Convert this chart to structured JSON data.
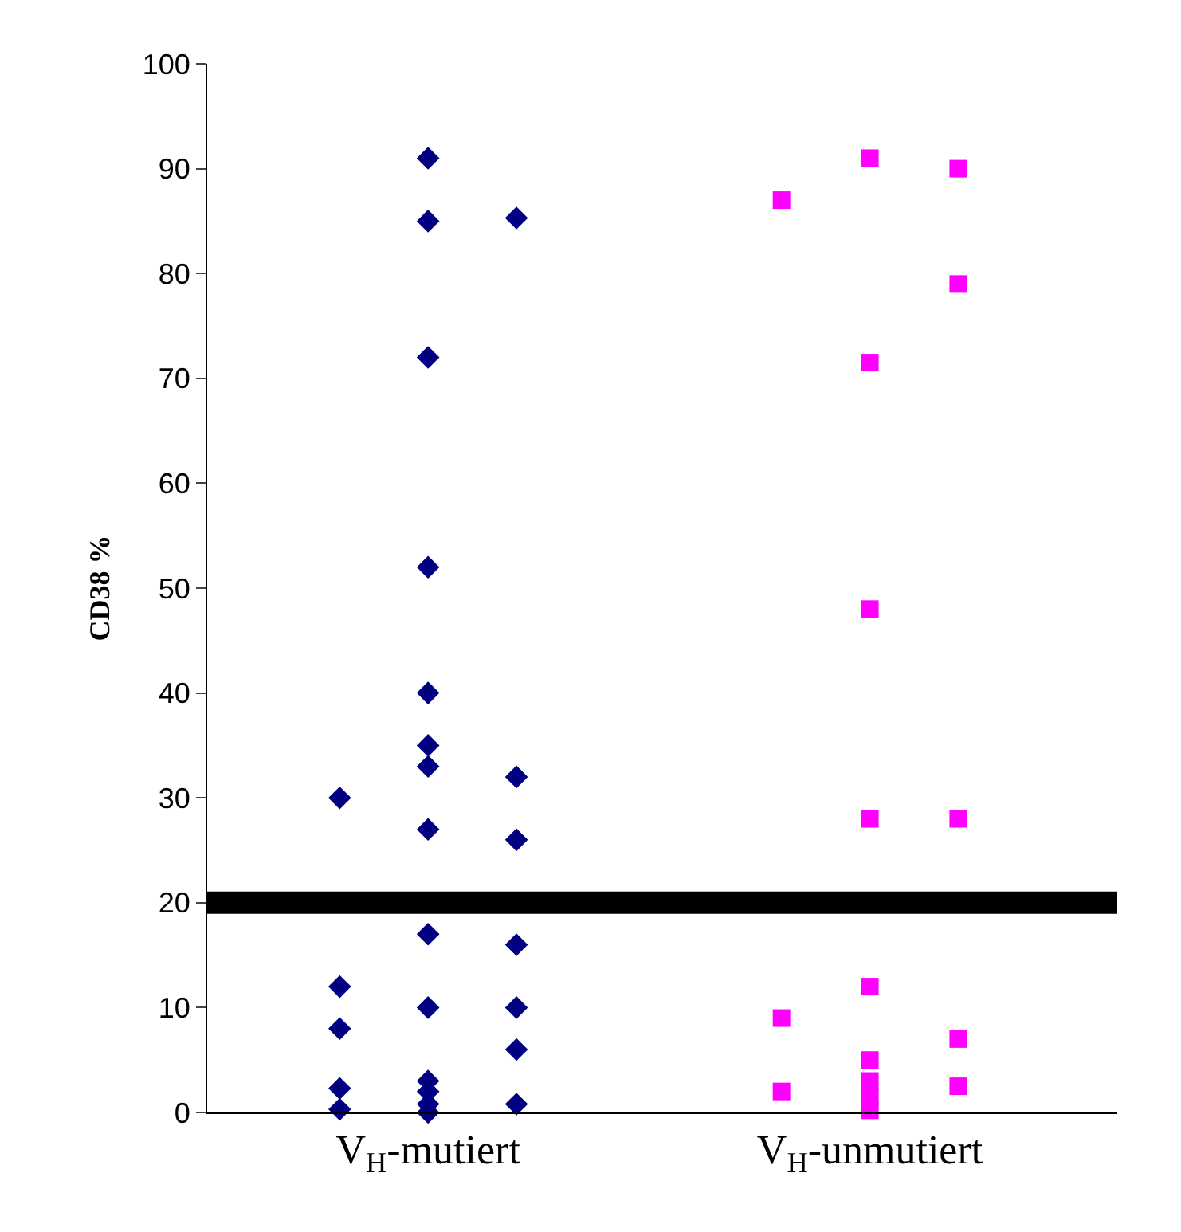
{
  "chart_data": {
    "type": "scatter",
    "ylabel": "CD38 %",
    "categories": [
      null,
      null,
      "V$_{H}$-mutiert",
      null,
      null,
      null,
      null,
      "V$_{H}$-unmutiert",
      null,
      null
    ],
    "ylim": [
      0,
      100
    ],
    "yticks": [
      0,
      10,
      20,
      30,
      40,
      50,
      60,
      70,
      80,
      90,
      100
    ],
    "grid": false,
    "legend": false,
    "series": [
      {
        "color": "#000080",
        "marker": "diamond",
        "values": [
          null,
          30,
          91,
          85.3,
          null,
          null,
          null,
          null,
          null,
          null
        ]
      },
      {
        "color": "#000080",
        "marker": "diamond",
        "values": [
          null,
          12,
          85,
          32,
          null,
          null,
          null,
          null,
          null,
          null
        ]
      },
      {
        "color": "#000080",
        "marker": "diamond",
        "values": [
          null,
          8,
          72,
          26,
          null,
          null,
          null,
          null,
          null,
          null
        ]
      },
      {
        "color": "#000080",
        "marker": "diamond",
        "values": [
          null,
          2.3,
          52,
          16,
          null,
          null,
          null,
          null,
          null,
          null
        ]
      },
      {
        "color": "#000080",
        "marker": "diamond",
        "values": [
          null,
          0.3,
          40,
          10,
          null,
          null,
          null,
          null,
          null,
          null
        ]
      },
      {
        "color": "#000080",
        "marker": "diamond",
        "values": [
          null,
          null,
          35,
          6,
          null,
          null,
          null,
          null,
          null,
          null
        ]
      },
      {
        "color": "#000080",
        "marker": "diamond",
        "values": [
          null,
          null,
          33,
          0.8,
          null,
          null,
          null,
          null,
          null,
          null
        ]
      },
      {
        "color": "#000080",
        "marker": "diamond",
        "values": [
          null,
          null,
          27,
          null,
          null,
          null,
          null,
          null,
          null,
          null
        ]
      },
      {
        "color": "#000080",
        "marker": "diamond",
        "values": [
          null,
          null,
          17,
          null,
          null,
          null,
          null,
          null,
          null,
          null
        ]
      },
      {
        "color": "#000080",
        "marker": "diamond",
        "values": [
          null,
          null,
          10,
          null,
          null,
          null,
          null,
          null,
          null,
          null
        ]
      },
      {
        "color": "#000080",
        "marker": "diamond",
        "values": [
          null,
          null,
          3,
          null,
          null,
          null,
          null,
          null,
          null,
          null
        ]
      },
      {
        "color": "#000080",
        "marker": "diamond",
        "values": [
          null,
          null,
          2,
          null,
          null,
          null,
          null,
          null,
          null,
          null
        ]
      },
      {
        "color": "#000080",
        "marker": "diamond",
        "values": [
          null,
          null,
          0.8,
          null,
          null,
          null,
          null,
          null,
          null,
          null
        ]
      },
      {
        "color": "#000080",
        "marker": "diamond",
        "values": [
          null,
          null,
          0,
          null,
          null,
          null,
          null,
          null,
          null,
          null
        ]
      },
      {
        "color": "#ff00ff",
        "marker": "square",
        "values": [
          null,
          null,
          null,
          null,
          null,
          null,
          87,
          91,
          90,
          null
        ]
      },
      {
        "color": "#ff00ff",
        "marker": "square",
        "values": [
          null,
          null,
          null,
          null,
          null,
          null,
          9,
          71.5,
          79,
          null
        ]
      },
      {
        "color": "#ff00ff",
        "marker": "square",
        "values": [
          null,
          null,
          null,
          null,
          null,
          null,
          2,
          48,
          28,
          null
        ]
      },
      {
        "color": "#ff00ff",
        "marker": "square",
        "values": [
          null,
          null,
          null,
          null,
          null,
          null,
          null,
          28,
          7,
          null
        ]
      },
      {
        "color": "#ff00ff",
        "marker": "square",
        "values": [
          null,
          null,
          null,
          null,
          null,
          null,
          null,
          12,
          2.5,
          null
        ]
      },
      {
        "color": "#ff00ff",
        "marker": "square",
        "values": [
          null,
          null,
          null,
          null,
          null,
          null,
          null,
          5,
          null,
          null
        ]
      },
      {
        "color": "#ff00ff",
        "marker": "square",
        "values": [
          null,
          null,
          null,
          null,
          null,
          null,
          null,
          3,
          null,
          null
        ]
      },
      {
        "color": "#ff00ff",
        "marker": "square",
        "values": [
          null,
          null,
          null,
          null,
          null,
          null,
          null,
          1.5,
          null,
          null
        ]
      },
      {
        "color": "#ff00ff",
        "marker": "square",
        "values": [
          null,
          null,
          null,
          null,
          null,
          null,
          null,
          0.2,
          null,
          null
        ]
      }
    ],
    "ref_lines": [
      {
        "axis": "y",
        "value": 20,
        "label": null,
        "color": "#000000"
      }
    ]
  }
}
